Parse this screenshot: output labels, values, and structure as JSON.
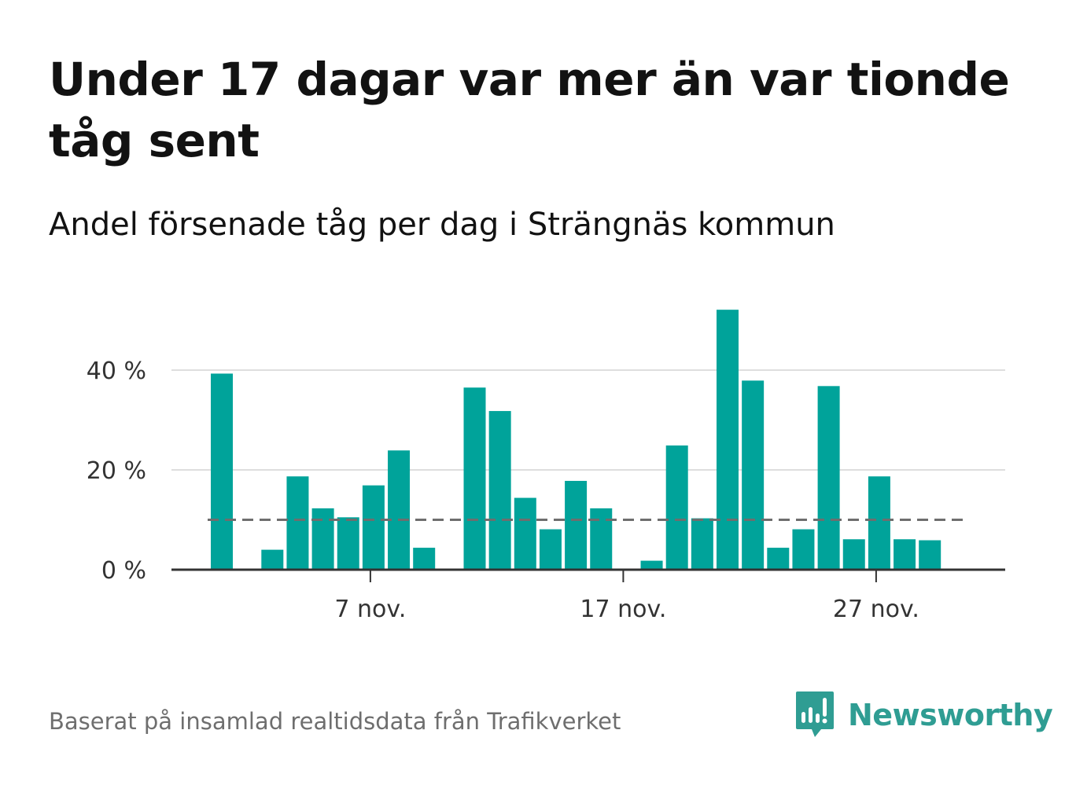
{
  "title": "Under 17 dagar var mer än var tionde tåg sent",
  "subtitle": "Andel försenade tåg per dag i Strängnäs kommun",
  "source": "Baserat på insamlad realtidsdata från Trafikverket",
  "brand": {
    "name": "Newsworthy",
    "color": "#2f9d93",
    "icon": "newsworthy-logo-icon"
  },
  "chart_data": {
    "type": "bar",
    "bar_color": "#00a39a",
    "reference_line_color": "#6e6e6e",
    "x": [
      "1 nov.",
      "2 nov.",
      "3 nov.",
      "4 nov.",
      "5 nov.",
      "6 nov.",
      "7 nov.",
      "8 nov.",
      "9 nov.",
      "10 nov.",
      "11 nov.",
      "12 nov.",
      "13 nov.",
      "14 nov.",
      "15 nov.",
      "16 nov.",
      "17 nov.",
      "18 nov.",
      "19 nov.",
      "20 nov.",
      "21 nov.",
      "22 nov.",
      "23 nov.",
      "24 nov.",
      "25 nov.",
      "26 nov.",
      "27 nov.",
      "28 nov.",
      "29 nov.",
      "30 nov."
    ],
    "values": [
      39.3,
      0,
      4.0,
      18.7,
      12.3,
      10.5,
      16.9,
      23.9,
      4.4,
      0,
      36.5,
      31.8,
      14.4,
      8.1,
      17.8,
      12.3,
      0,
      1.8,
      24.9,
      10.3,
      52.1,
      37.9,
      4.4,
      8.1,
      36.8,
      6.1,
      18.7,
      6.1,
      5.9,
      0
    ],
    "reference_line": 10,
    "y_ticks": [
      0,
      20,
      40
    ],
    "y_tick_labels": [
      "0 %",
      "20 %",
      "40 %"
    ],
    "x_tick_labels": [
      "7 nov.",
      "17 nov.",
      "27 nov."
    ],
    "x_tick_indices": [
      6,
      16,
      26
    ],
    "ylim": [
      0,
      55
    ],
    "grid": true
  }
}
